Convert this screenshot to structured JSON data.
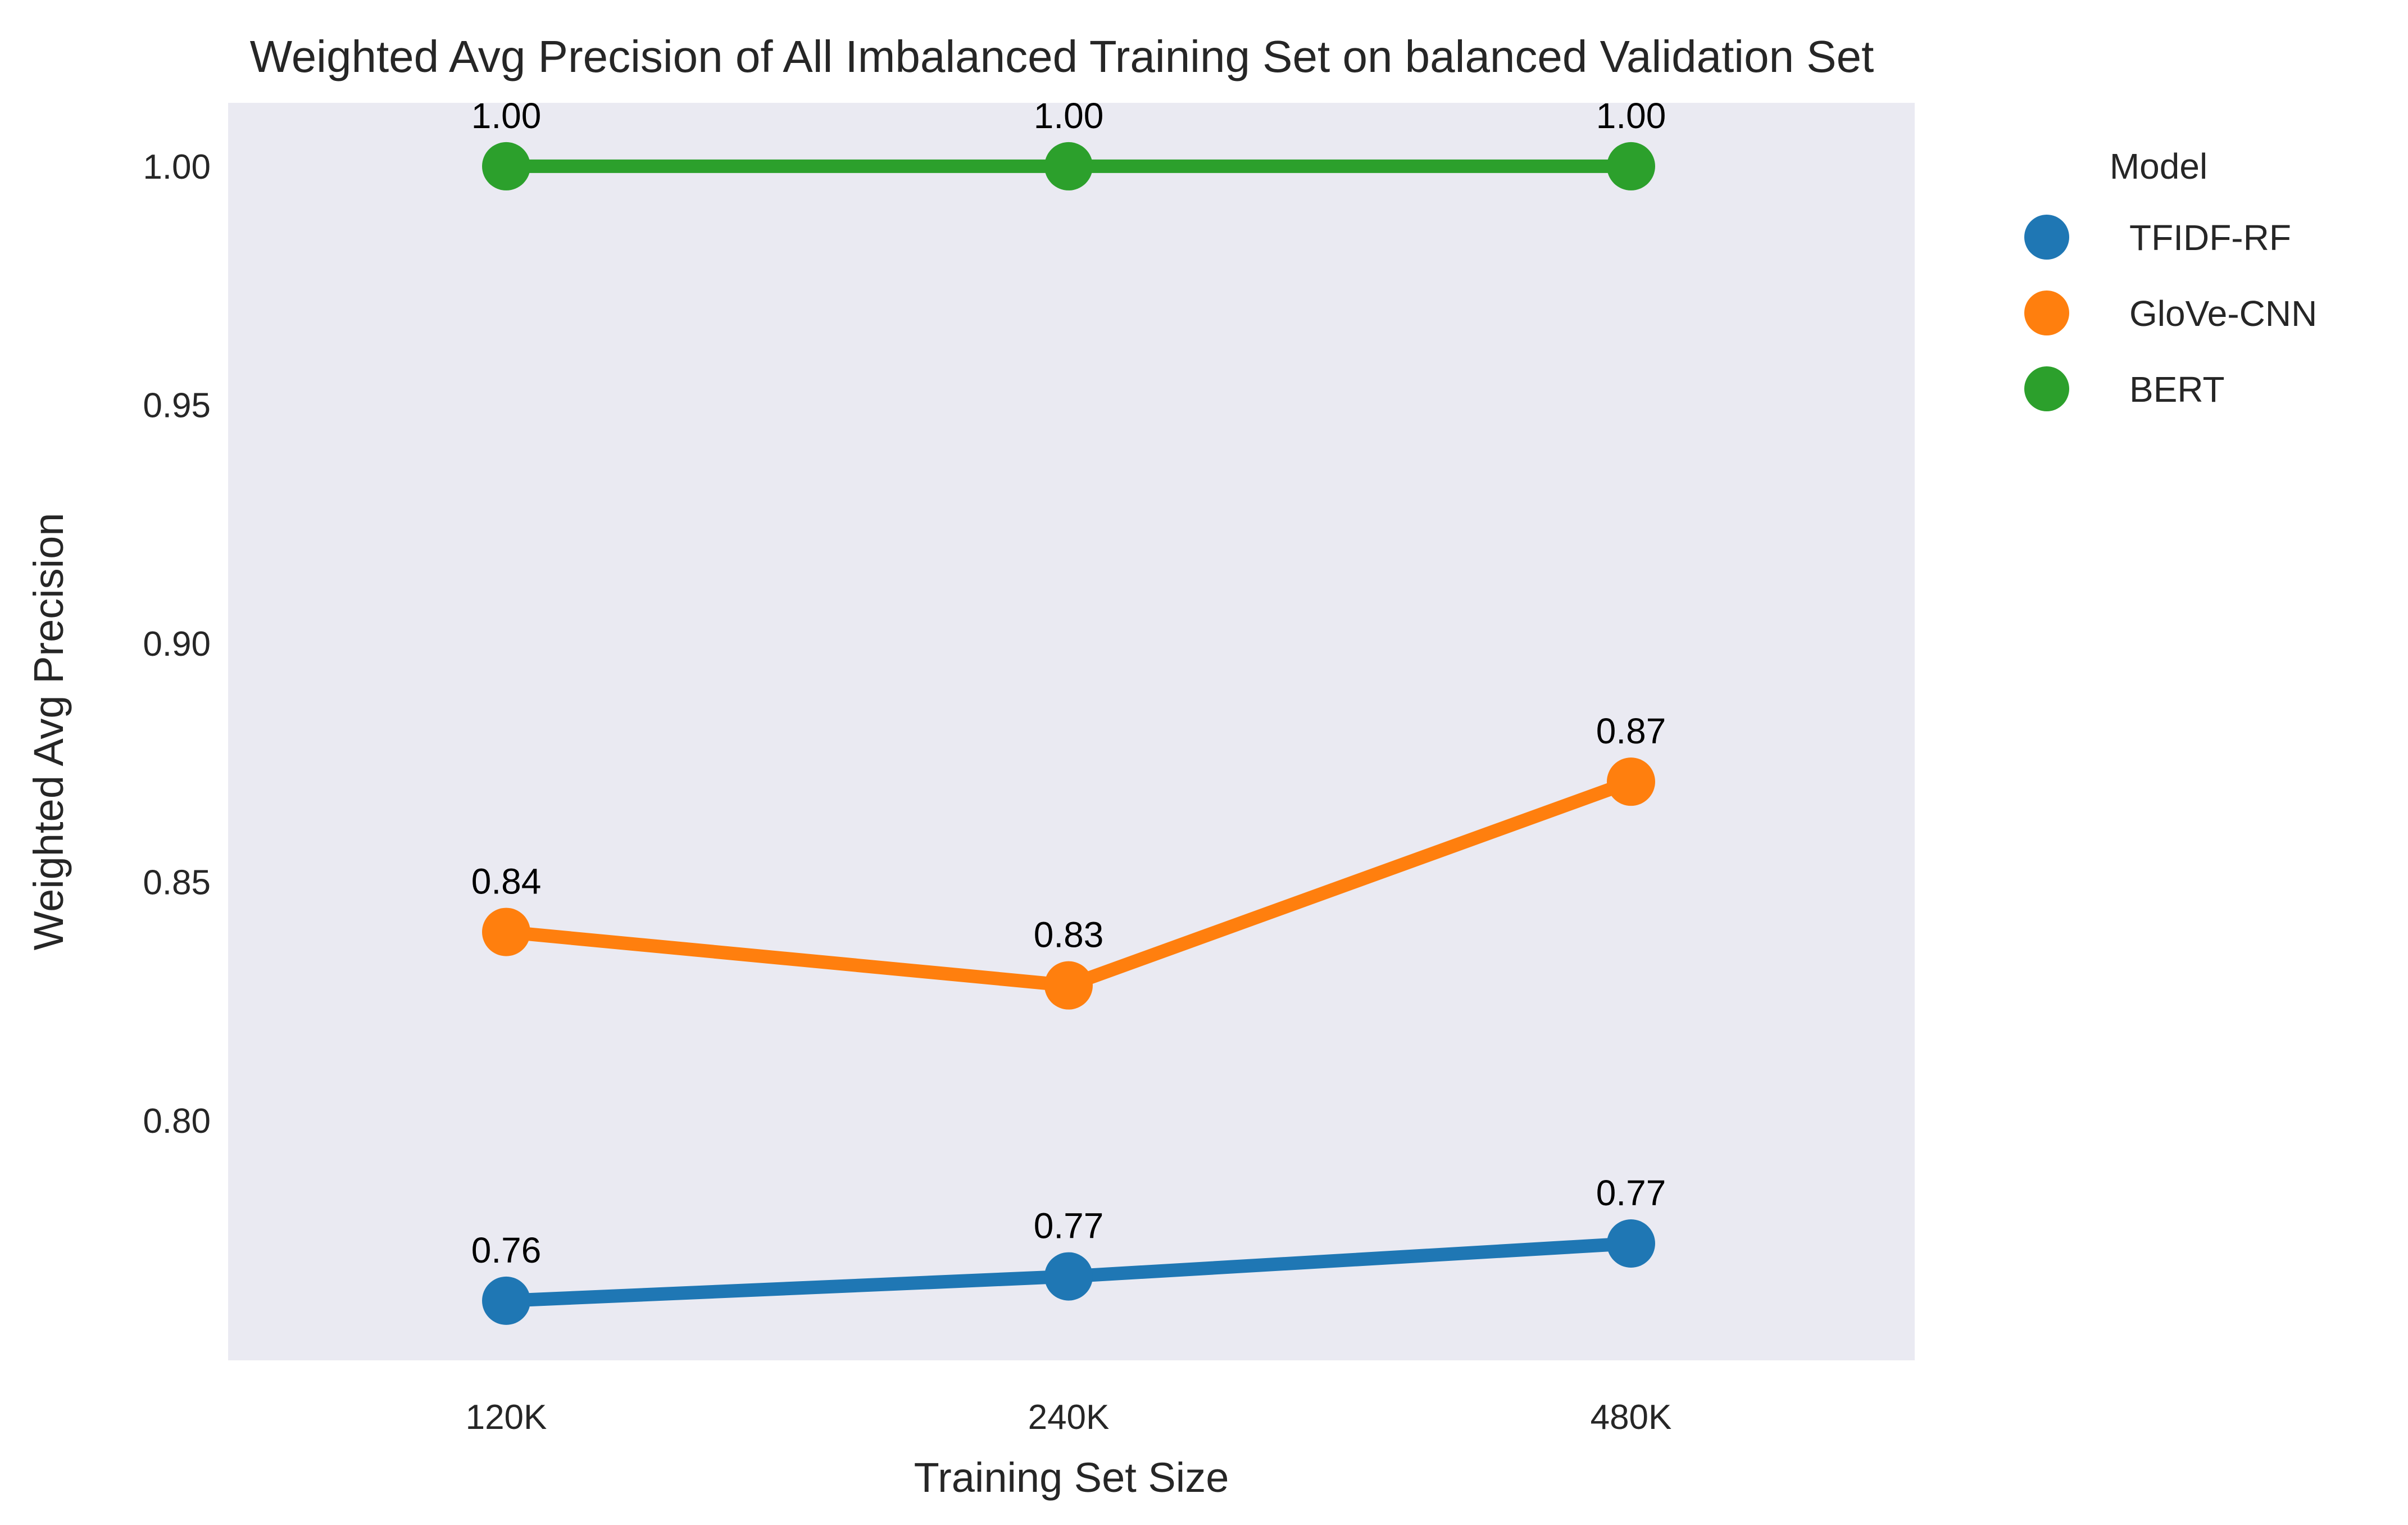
{
  "chart_data": {
    "type": "line",
    "title": "Weighted Avg Precision of All Imbalanced Training Set on balanced Validation Set",
    "xlabel": "Training Set Size",
    "ylabel": "Weighted Avg Precision",
    "categories": [
      "120K",
      "240K",
      "480K"
    ],
    "ylim": [
      0.7497,
      1.0133
    ],
    "yticks": [
      0.8,
      0.85,
      0.9,
      0.95,
      1.0
    ],
    "ytick_labels": [
      "0.80",
      "0.85",
      "0.90",
      "0.95",
      "1.00"
    ],
    "grid": false,
    "legend": {
      "title": "Model",
      "placement": "outside right"
    },
    "series": [
      {
        "name": "TFIDF-RF",
        "color": "#1f77b4",
        "values": [
          0.7622,
          0.7673,
          0.7742
        ],
        "labels": [
          "0.76",
          "0.77",
          "0.77"
        ]
      },
      {
        "name": "GloVe-CNN",
        "color": "#ff7f0e",
        "values": [
          0.8395,
          0.8283,
          0.871
        ],
        "labels": [
          "0.84",
          "0.83",
          "0.87"
        ]
      },
      {
        "name": "BERT",
        "color": "#2ca02c",
        "values": [
          1.0,
          1.0,
          1.0
        ],
        "labels": [
          "1.00",
          "1.00",
          "1.00"
        ]
      }
    ]
  }
}
